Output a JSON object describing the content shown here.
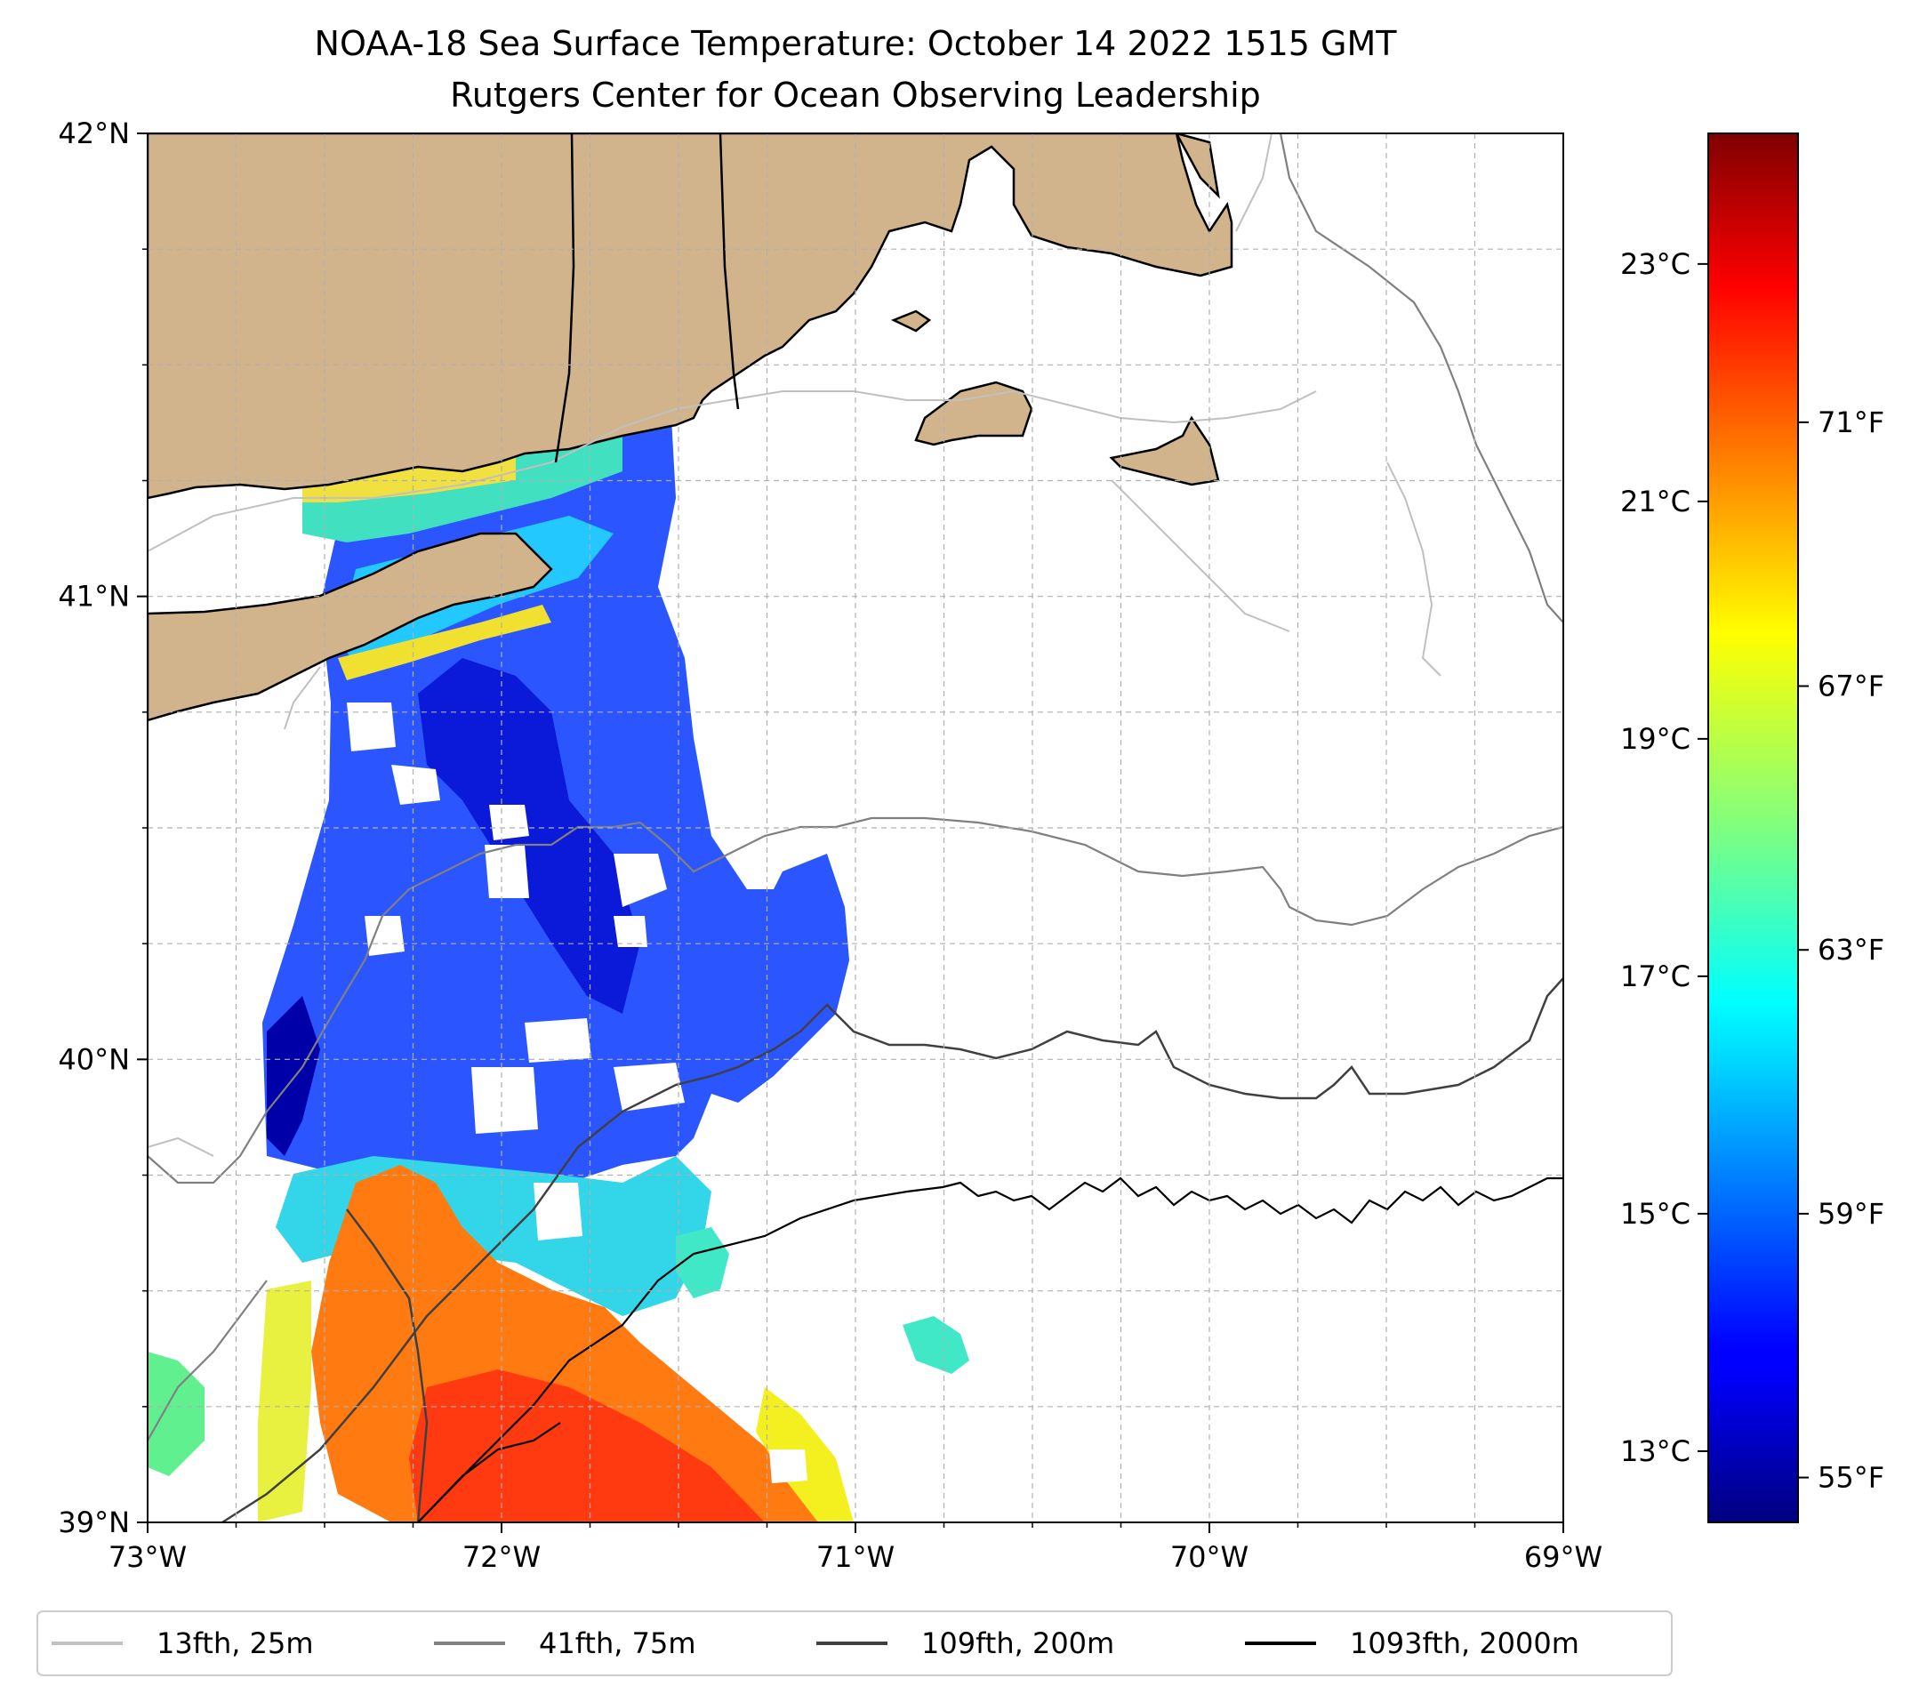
{
  "title": "NOAA-18 Sea Surface Temperature: October 14 2022 1515 GMT",
  "subtitle": "Rutgers Center for Ocean Observing Leadership",
  "map": {
    "lon_range": [
      -73,
      -69
    ],
    "lat_range": [
      39,
      42
    ],
    "lon_ticks": [
      {
        "value": -73,
        "label": "73°W"
      },
      {
        "value": -72,
        "label": "72°W"
      },
      {
        "value": -71,
        "label": "71°W"
      },
      {
        "value": -70,
        "label": "70°W"
      },
      {
        "value": -69,
        "label": "69°W"
      }
    ],
    "lat_ticks": [
      {
        "value": 39,
        "label": "39°N"
      },
      {
        "value": 40,
        "label": "40°N"
      },
      {
        "value": 41,
        "label": "41°N"
      },
      {
        "value": 42,
        "label": "42°N"
      }
    ],
    "grid": true,
    "land_color": "#d2b48c",
    "ocean_color": "#ffffff"
  },
  "colorbar": {
    "colormap": "jet",
    "range_c": [
      12.4,
      24.1
    ],
    "celsius_ticks": [
      {
        "value": 13,
        "label": "13°C"
      },
      {
        "value": 15,
        "label": "15°C"
      },
      {
        "value": 17,
        "label": "17°C"
      },
      {
        "value": 19,
        "label": "19°C"
      },
      {
        "value": 21,
        "label": "21°C"
      },
      {
        "value": 23,
        "label": "23°C"
      }
    ],
    "fahrenheit_ticks": [
      {
        "value": 55,
        "label": "55°F"
      },
      {
        "value": 59,
        "label": "59°F"
      },
      {
        "value": 63,
        "label": "63°F"
      },
      {
        "value": 67,
        "label": "67°F"
      },
      {
        "value": 71,
        "label": "71°F"
      }
    ]
  },
  "legend": {
    "placement": "bottom",
    "items": [
      {
        "label": "13fth, 25m",
        "color": "#c0c0c0"
      },
      {
        "label": "41fth, 75m",
        "color": "#808080"
      },
      {
        "label": "109fth, 200m",
        "color": "#404040"
      },
      {
        "label": "1093fth, 2000m",
        "color": "#000000"
      }
    ]
  }
}
